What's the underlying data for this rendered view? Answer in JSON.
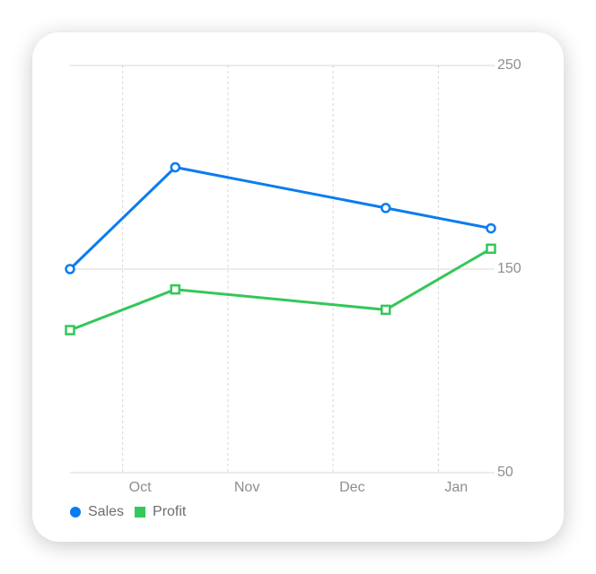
{
  "chart_data": {
    "type": "line",
    "x": [
      0.5,
      1.5,
      3.5,
      4.5
    ],
    "xlim": [
      0.5,
      4.5
    ],
    "xticks": [
      {
        "value": 1,
        "label": "Oct"
      },
      {
        "value": 2,
        "label": "Nov"
      },
      {
        "value": 3,
        "label": "Dec"
      },
      {
        "value": 4,
        "label": "Jan"
      }
    ],
    "ylim": [
      50,
      250
    ],
    "yticks": [
      50,
      150,
      250
    ],
    "grid": true,
    "legend": "bottom-left",
    "series": [
      {
        "name": "Sales",
        "color": "#0a7cf0",
        "marker": "circle",
        "values": [
          150,
          200,
          180,
          170
        ]
      },
      {
        "name": "Profit",
        "color": "#34c759",
        "marker": "square",
        "values": [
          120,
          140,
          130,
          160
        ]
      }
    ]
  }
}
